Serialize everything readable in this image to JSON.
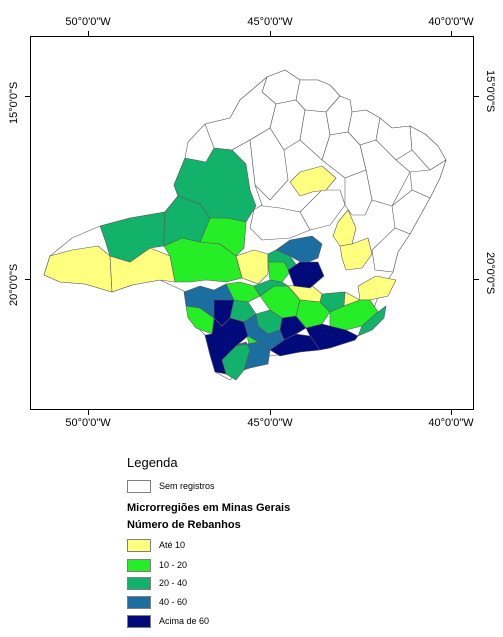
{
  "axes": {
    "top_labels": [
      "50°0'0\"W",
      "45°0'0\"W",
      "40°0'0\"W"
    ],
    "bottom_labels": [
      "50°0'0\"W",
      "45°0'0\"W",
      "40°0'0\"W"
    ],
    "left_labels": [
      "15°0'0\"S",
      "20°0'0\"S"
    ],
    "right_labels": [
      "15°0'0\"S",
      "20°0'0\"S"
    ]
  },
  "legend": {
    "title": "Legenda",
    "no_record": {
      "label": "Sem registros",
      "color": "#ffffff"
    },
    "subtitle": "Microrregiões em Minas Gerais",
    "category_title": "Número de Rebanhos",
    "classes": [
      {
        "label": "Até 10",
        "color": "#ffff7f"
      },
      {
        "label": "10 - 20",
        "color": "#26ee26"
      },
      {
        "label": "20 - 40",
        "color": "#13b26b"
      },
      {
        "label": "40 - 60",
        "color": "#1a6fa0"
      },
      {
        "label": "Acima de 60",
        "color": "#000a7a"
      }
    ]
  },
  "colors": {
    "border": "#000000",
    "region_outline": "#5a5a5a"
  }
}
